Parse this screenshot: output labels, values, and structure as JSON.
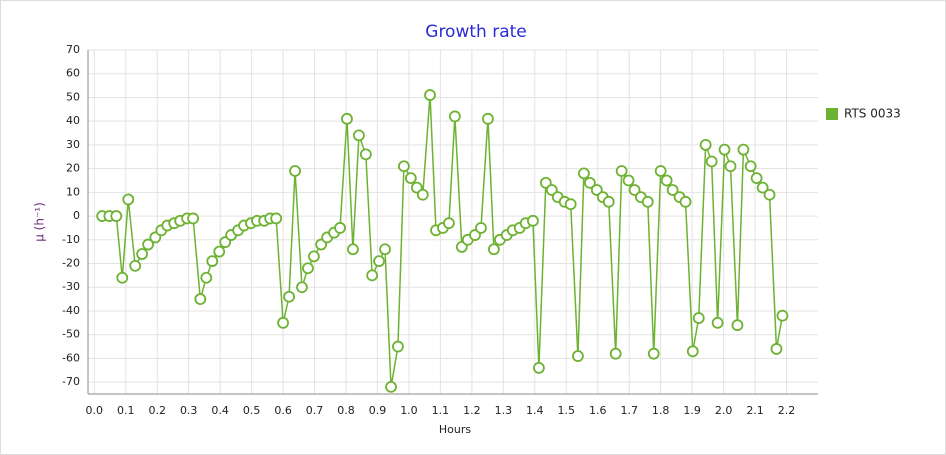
{
  "chart_data": {
    "type": "line",
    "title": "Growth rate",
    "x_label": "Hours",
    "y_label": "μ (h⁻¹)",
    "xlim": [
      -0.02,
      2.3
    ],
    "ylim": [
      -75,
      70
    ],
    "xticks": [
      {
        "value": 0,
        "label": "0.0"
      },
      0.1,
      0.2,
      0.3,
      0.4,
      0.5,
      0.6,
      0.7,
      0.8,
      0.9,
      {
        "value": 1,
        "label": "1.0"
      },
      1.1,
      1.2,
      1.3,
      1.4,
      1.5,
      1.6,
      1.7,
      1.8,
      1.9,
      {
        "value": 2,
        "label": "2.0"
      },
      2.1,
      2.2
    ],
    "yticks": [
      70,
      60,
      50,
      40,
      30,
      20,
      10,
      0,
      -10,
      -20,
      -30,
      -40,
      -50,
      -60,
      -70
    ],
    "grid": true,
    "legend_position": "right",
    "x": [
      0.025,
      0.048,
      0.07,
      0.089,
      0.108,
      0.13,
      0.152,
      0.171,
      0.194,
      0.213,
      0.232,
      0.254,
      0.273,
      0.295,
      0.314,
      0.337,
      0.356,
      0.375,
      0.397,
      0.416,
      0.435,
      0.457,
      0.476,
      0.498,
      0.517,
      0.54,
      0.559,
      0.578,
      0.6,
      0.619,
      0.638,
      0.66,
      0.679,
      0.698,
      0.721,
      0.74,
      0.762,
      0.781,
      0.803,
      0.822,
      0.841,
      0.863,
      0.883,
      0.905,
      0.924,
      0.943,
      0.965,
      0.984,
      1.006,
      1.025,
      1.044,
      1.067,
      1.086,
      1.108,
      1.127,
      1.146,
      1.168,
      1.187,
      1.21,
      1.229,
      1.251,
      1.27,
      1.289,
      1.311,
      1.33,
      1.352,
      1.371,
      1.394,
      1.413,
      1.435,
      1.454,
      1.473,
      1.495,
      1.514,
      1.537,
      1.556,
      1.575,
      1.597,
      1.616,
      1.635,
      1.657,
      1.676,
      1.698,
      1.717,
      1.737,
      1.759,
      1.778,
      1.8,
      1.819,
      1.838,
      1.86,
      1.879,
      1.902,
      1.921,
      1.943,
      1.962,
      1.981,
      2.003,
      2.022,
      2.044,
      2.063,
      2.086,
      2.105,
      2.124,
      2.146,
      2.168,
      2.187
    ],
    "series": [
      {
        "name": "RTS 0033",
        "color": "#6eb233",
        "values": [
          0,
          0,
          0,
          -26,
          7,
          -21,
          -16,
          -12,
          -9,
          -6,
          -4,
          -3,
          -2,
          -1,
          -1,
          -35,
          -26,
          -19,
          -15,
          -11,
          -8,
          -6,
          -4,
          -3,
          -2,
          -2,
          -1,
          -1,
          -45,
          -34,
          19,
          -30,
          -22,
          -17,
          -12,
          -9,
          -7,
          -5,
          41,
          -14,
          34,
          26,
          -25,
          -19,
          -14,
          -72,
          -55,
          21,
          16,
          12,
          9,
          51,
          -6,
          -5,
          -3,
          42,
          -13,
          -10,
          -8,
          -5,
          41,
          -14,
          -10,
          -8,
          -6,
          -5,
          -3,
          -2,
          -64,
          14,
          11,
          8,
          6,
          5,
          -59,
          18,
          14,
          11,
          8,
          6,
          -58,
          19,
          15,
          11,
          8,
          6,
          -58,
          19,
          15,
          11,
          8,
          6,
          -57,
          -43,
          30,
          23,
          -45,
          28,
          21,
          -46,
          28,
          21,
          16,
          12,
          9,
          -56,
          -42
        ]
      }
    ]
  }
}
